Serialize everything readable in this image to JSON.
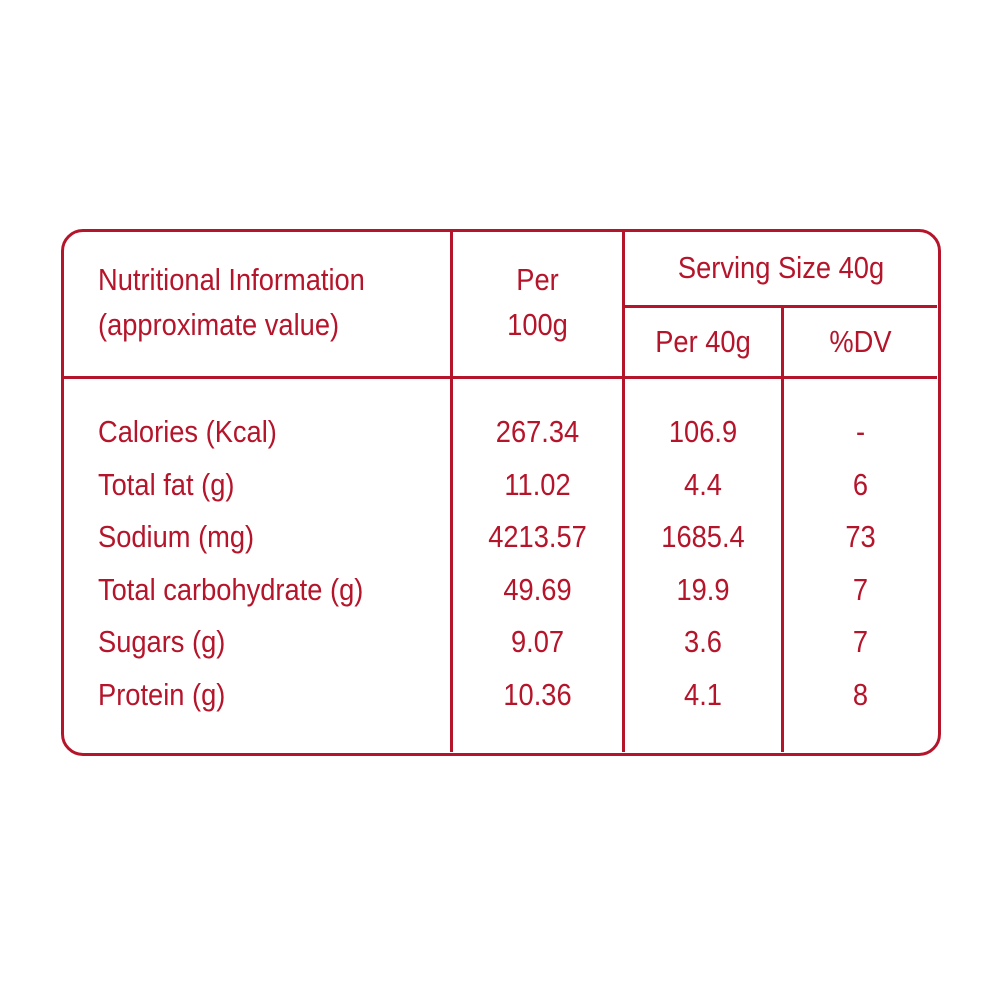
{
  "accent_color": "#b5152b",
  "header": {
    "title_line1": "Nutritional Information",
    "title_line2": "(approximate value)",
    "per100_line1": "Per",
    "per100_line2": "100g",
    "serving_size": "Serving Size 40g",
    "per_serving": "Per 40g",
    "dv": "%DV"
  },
  "rows": [
    {
      "label": "Calories (Kcal)",
      "per100": "267.34",
      "per40": "106.9",
      "dv": "-"
    },
    {
      "label": "Total fat (g)",
      "per100": "11.02",
      "per40": "4.4",
      "dv": "6"
    },
    {
      "label": "Sodium (mg)",
      "per100": "4213.57",
      "per40": "1685.4",
      "dv": "73"
    },
    {
      "label": "Total carbohydrate (g)",
      "per100": "49.69",
      "per40": "19.9",
      "dv": "7"
    },
    {
      "label": "Sugars (g)",
      "per100": "9.07",
      "per40": "3.6",
      "dv": "7"
    },
    {
      "label": "Protein (g)",
      "per100": "10.36",
      "per40": "4.1",
      "dv": "8"
    }
  ]
}
